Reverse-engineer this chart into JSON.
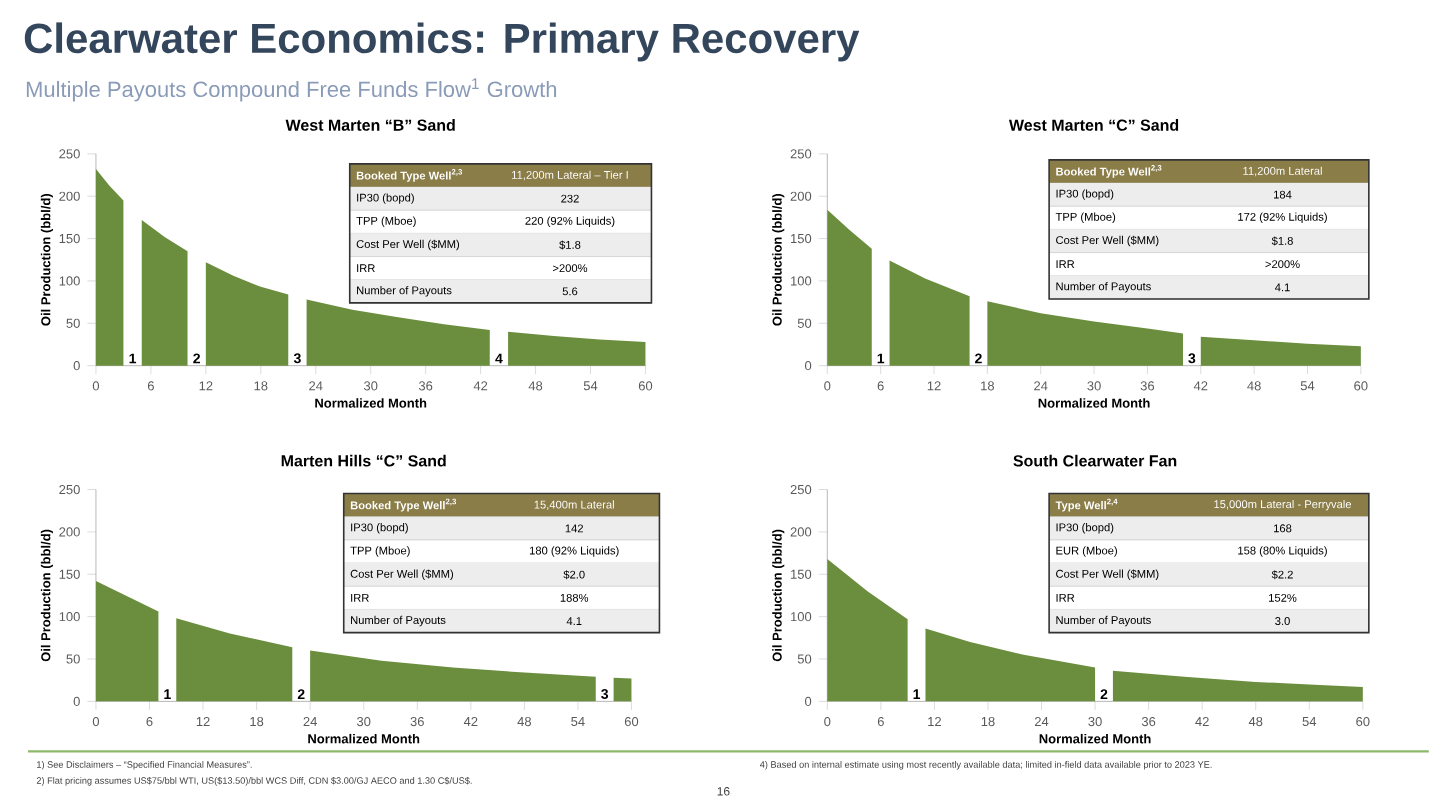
{
  "chart_data": [
    {
      "type": "other",
      "title": "Clearwater Economics: Primary Recovery",
      "subtitle": "Multiple Payouts Compound Free Funds Flow$^{1}$ Growth",
      "annotations": [
        "1) See Disclaimers – “Specified Financial Measures”.",
        "2) Flat pricing assumes US$75/bbl WTI, US($13.50)/bbl WCS Diff, CDN $3.00/GJ AECO and 1.30 C$/US$.",
        "4) Based on internal estimate using most recently available data; limited in-field data available prior to 2023 YE.",
        "16"
      ]
    },
    {
      "type": "area",
      "title": "West Marten “B” Sand",
      "xlabel": "Normalized Month",
      "ylabel": "Oil Production (bbl/d)",
      "color": "#6b8e3e",
      "xlim": [
        0,
        60
      ],
      "ylim": [
        0,
        250
      ],
      "xticks": [
        0,
        6,
        12,
        18,
        24,
        30,
        36,
        42,
        48,
        54,
        60
      ],
      "yticks": [
        0,
        50,
        100,
        150,
        200,
        250
      ],
      "x": [
        0,
        1.5,
        3,
        4,
        5,
        7.5,
        10,
        11,
        12,
        15,
        18,
        21,
        22,
        23,
        28,
        33,
        38,
        43,
        44,
        45,
        50,
        55,
        60
      ],
      "values": [
        232,
        212,
        195,
        null,
        172,
        152,
        135,
        null,
        122,
        106,
        93,
        84,
        null,
        78,
        66,
        57,
        49,
        42,
        null,
        40,
        35,
        31,
        28
      ],
      "annotations": [
        {
          "text": "1",
          "x": 4,
          "y": 0
        },
        {
          "text": "2",
          "x": 11,
          "y": 0
        },
        {
          "text": "3",
          "x": 22,
          "y": 0
        },
        {
          "text": "4",
          "x": 44,
          "y": 0
        },
        "Booked Type Well$^{2,3}$",
        "11,200m Lateral – Tier I",
        "IP30 (bopd)",
        "232",
        "TPP (Mboe)",
        "220 (92% Liquids)",
        "Cost Per Well ($MM)",
        "$1.8",
        "IRR",
        ">200%",
        "Number of Payouts",
        "5.6"
      ]
    },
    {
      "type": "area",
      "title": "West Marten “C” Sand",
      "xlabel": "Normalized Month",
      "ylabel": "Oil Production (bbl/d)",
      "color": "#6b8e3e",
      "xlim": [
        0,
        60
      ],
      "ylim": [
        0,
        250
      ],
      "xticks": [
        0,
        6,
        12,
        18,
        24,
        30,
        36,
        42,
        48,
        54,
        60
      ],
      "yticks": [
        0,
        50,
        100,
        150,
        200,
        250
      ],
      "x": [
        0,
        2.5,
        5,
        6,
        7,
        11,
        16,
        17,
        18,
        24,
        30,
        36,
        40,
        41,
        42,
        48,
        54,
        60
      ],
      "values": [
        184,
        160,
        138,
        null,
        124,
        103,
        82,
        null,
        76,
        62,
        52,
        44,
        38,
        null,
        34,
        30,
        26,
        23
      ],
      "annotations": [
        {
          "text": "1",
          "x": 6,
          "y": 0
        },
        {
          "text": "2",
          "x": 17,
          "y": 0
        },
        {
          "text": "3",
          "x": 41,
          "y": 0
        },
        "Booked Type Well$^{2,3}$",
        "11,200m Lateral",
        "IP30 (bopd)",
        "184",
        "TPP (Mboe)",
        "172 (92% Liquids)",
        "Cost Per Well ($MM)",
        "$1.8",
        "IRR",
        ">200%",
        "Number of Payouts",
        "4.1"
      ]
    },
    {
      "type": "area",
      "title": "Marten Hills “C” Sand",
      "xlabel": "Normalized Month",
      "ylabel": "Oil Production (bbl/d)",
      "color": "#6b8e3e",
      "xlim": [
        0,
        60
      ],
      "ylim": [
        0,
        250
      ],
      "xticks": [
        0,
        6,
        12,
        18,
        24,
        30,
        36,
        42,
        48,
        54,
        60
      ],
      "yticks": [
        0,
        50,
        100,
        150,
        200,
        250
      ],
      "x": [
        0,
        3.5,
        7,
        8,
        9,
        15,
        22,
        23,
        24,
        32,
        40,
        48,
        56,
        57,
        58,
        60
      ],
      "values": [
        142,
        124,
        106,
        null,
        98,
        80,
        64,
        null,
        60,
        48,
        40,
        34,
        29,
        null,
        28,
        27
      ],
      "annotations": [
        {
          "text": "1",
          "x": 8,
          "y": 0
        },
        {
          "text": "2",
          "x": 23,
          "y": 0
        },
        {
          "text": "3",
          "x": 57,
          "y": 0
        },
        "Booked Type Well$^{2,3}$",
        "15,400m Lateral",
        "IP30 (bopd)",
        "142",
        "TPP (Mboe)",
        "180 (92% Liquids)",
        "Cost Per Well ($MM)",
        "$2.0",
        "IRR",
        "188%",
        "Number of Payouts",
        "4.1"
      ]
    },
    {
      "type": "area",
      "title": "South Clearwater Fan",
      "xlabel": "Normalized Month",
      "ylabel": "Oil Production (bbl/d)",
      "color": "#6b8e3e",
      "xlim": [
        0,
        60
      ],
      "ylim": [
        0,
        250
      ],
      "xticks": [
        0,
        6,
        12,
        18,
        24,
        30,
        36,
        42,
        48,
        54,
        60
      ],
      "yticks": [
        0,
        50,
        100,
        150,
        200,
        250
      ],
      "x": [
        0,
        4.5,
        9,
        10,
        11,
        16,
        22,
        30,
        31,
        32,
        40,
        48,
        54,
        60
      ],
      "values": [
        168,
        130,
        97,
        null,
        86,
        70,
        55,
        40,
        null,
        36,
        29,
        23,
        20,
        17
      ],
      "annotations": [
        {
          "text": "1",
          "x": 10,
          "y": 0
        },
        {
          "text": "2",
          "x": 31,
          "y": 0
        },
        "Type Well$^{2,4}$",
        "15,000m Lateral - Perryvale",
        "IP30 (bopd)",
        "168",
        "EUR (Mboe)",
        "158 (80% Liquids)",
        "Cost Per Well ($MM)",
        "$2.2",
        "IRR",
        "152%",
        "Number of Payouts",
        "3.0"
      ]
    }
  ]
}
